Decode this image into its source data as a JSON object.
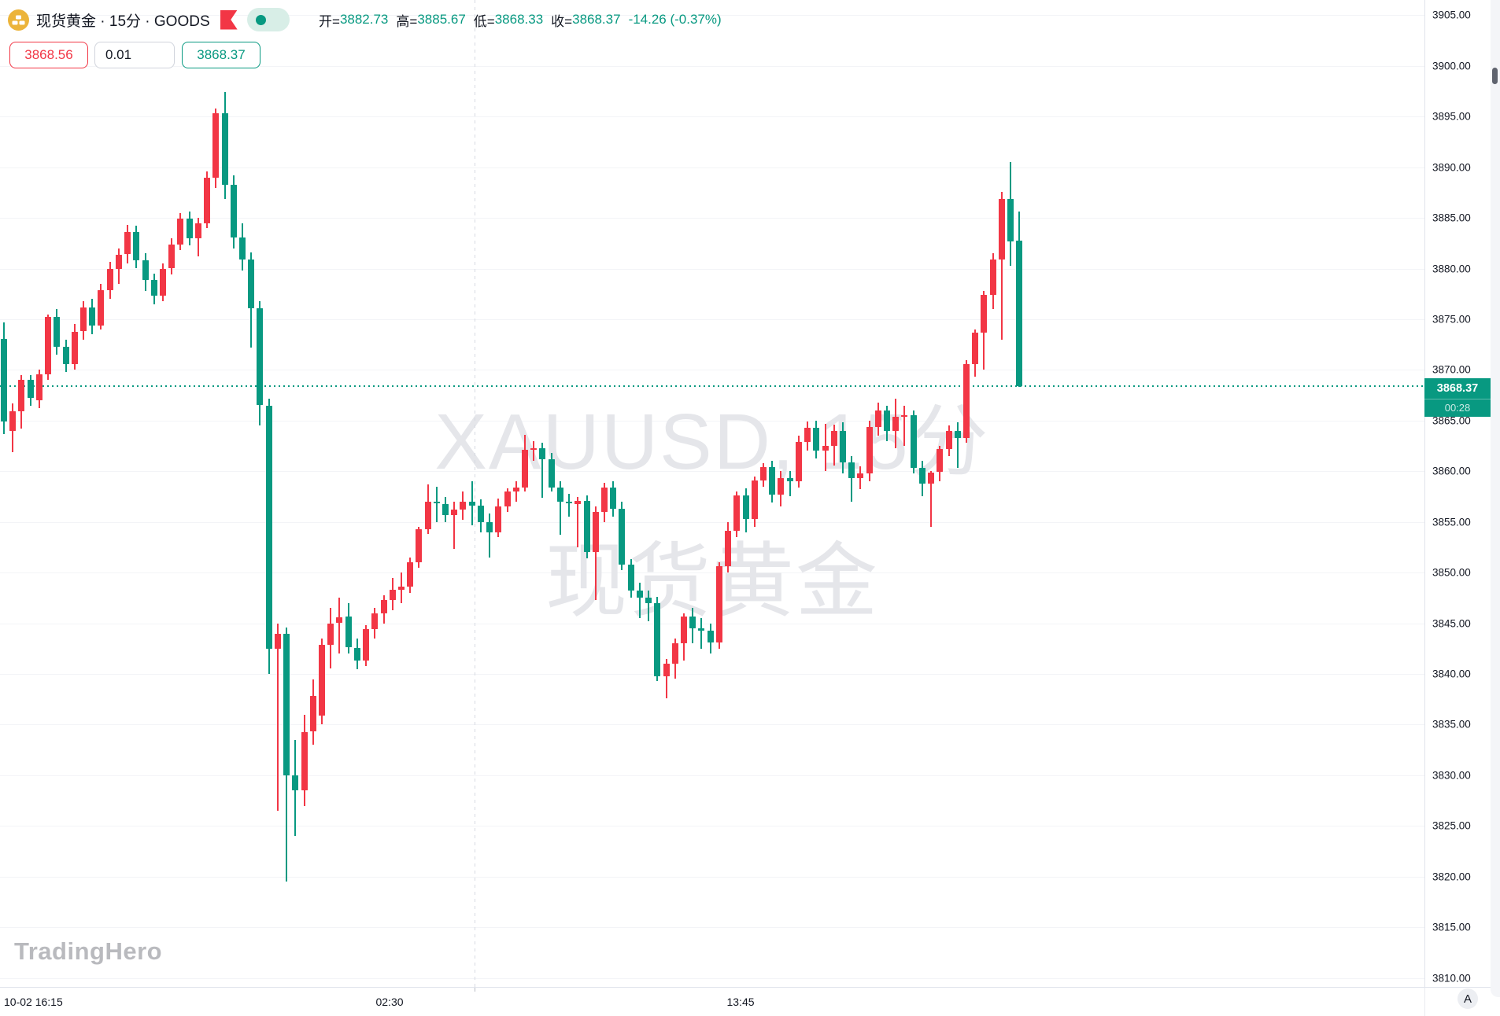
{
  "header": {
    "title": "现货黄金 · 15分 · GOODS",
    "logo_icon": "gold-bars-logo",
    "flag_icon": "red-flag-marker",
    "status_icon": "market-open-dot",
    "ohlc": {
      "open_label": "开",
      "open": "3882.73",
      "high_label": "高",
      "high": "3885.67",
      "low_label": "低",
      "low": "3868.33",
      "close_label": "收",
      "close": "3868.37",
      "change": "-14.26 (-0.37%)"
    }
  },
  "quote_panel": {
    "sell_price": "3868.56",
    "amount": "0.01",
    "buy_price": "3868.37"
  },
  "watermark": {
    "line1": "XAUUSD, 15分",
    "line2": "现货黄金"
  },
  "brand_watermark": "TradingHero",
  "price_axis": {
    "ticks": [
      "3905.00",
      "3900.00",
      "3895.00",
      "3890.00",
      "3885.00",
      "3880.00",
      "3875.00",
      "3870.00",
      "3865.00",
      "3860.00",
      "3855.00",
      "3850.00",
      "3845.00",
      "3840.00",
      "3835.00",
      "3830.00",
      "3825.00",
      "3820.00",
      "3815.00",
      "3810.00"
    ]
  },
  "time_axis": {
    "labels": [
      {
        "text": "10-02 16:15"
      },
      {
        "text": "02:30"
      },
      {
        "text": "13:45"
      }
    ]
  },
  "price_label": {
    "value": "3868.37",
    "countdown": "00:28"
  },
  "auto_scale_button": "A",
  "colors": {
    "up": "#f23645",
    "down": "#089981",
    "accent": "#089981",
    "last_price_bg": "#089981",
    "axis_text": "#131722",
    "watermark": "#e5e6ea",
    "brand_text": "#b9babe",
    "logo_gold": "#ecb43a"
  },
  "chart_data": {
    "type": "candlestick",
    "symbol": "XAUUSD (现货黄金)",
    "interval": "15分",
    "convention": "red=up, green=down",
    "ylim": [
      3810,
      3905
    ],
    "y_tick_step": 5,
    "x_labels": [
      "10-02 16:15",
      "02:30",
      "13:45"
    ],
    "last_price": 3868.37,
    "current_bar": {
      "open": 3882.73,
      "high": 3885.67,
      "low": 3868.33,
      "close": 3868.37,
      "change": -14.26,
      "change_pct": -0.37
    },
    "bars": [
      [
        3873.1,
        3874.7,
        3863.7,
        3864.9
      ],
      [
        3864.0,
        3866.7,
        3861.9,
        3865.9
      ],
      [
        3865.9,
        3869.5,
        3864.2,
        3869.0
      ],
      [
        3869.0,
        3869.5,
        3866.5,
        3867.2
      ],
      [
        3867.0,
        3870.0,
        3866.2,
        3869.6
      ],
      [
        3869.6,
        3875.5,
        3869.0,
        3875.2
      ],
      [
        3875.2,
        3876.0,
        3871.5,
        3872.3
      ],
      [
        3872.3,
        3873.0,
        3869.8,
        3870.6
      ],
      [
        3870.6,
        3874.5,
        3870.0,
        3873.8
      ],
      [
        3873.8,
        3876.8,
        3873.0,
        3876.2
      ],
      [
        3876.2,
        3877.0,
        3873.5,
        3874.4
      ],
      [
        3874.4,
        3878.5,
        3874.0,
        3877.9
      ],
      [
        3877.9,
        3880.7,
        3877.0,
        3880.0
      ],
      [
        3880.0,
        3882.0,
        3878.5,
        3881.4
      ],
      [
        3881.4,
        3884.3,
        3880.5,
        3883.6
      ],
      [
        3883.6,
        3884.2,
        3880.0,
        3880.8
      ],
      [
        3880.8,
        3881.5,
        3877.8,
        3878.9
      ],
      [
        3878.9,
        3879.5,
        3876.5,
        3877.3
      ],
      [
        3877.3,
        3880.5,
        3876.8,
        3880.0
      ],
      [
        3880.0,
        3883.0,
        3879.4,
        3882.4
      ],
      [
        3882.4,
        3885.5,
        3881.8,
        3884.9
      ],
      [
        3884.9,
        3885.6,
        3882.3,
        3883.0
      ],
      [
        3883.0,
        3885.0,
        3881.2,
        3884.5
      ],
      [
        3884.5,
        3889.6,
        3884.0,
        3889.0
      ],
      [
        3889.0,
        3895.8,
        3888.0,
        3895.3
      ],
      [
        3895.3,
        3897.4,
        3886.9,
        3888.3
      ],
      [
        3888.3,
        3889.2,
        3882.0,
        3883.1
      ],
      [
        3883.1,
        3884.5,
        3879.8,
        3880.9
      ],
      [
        3880.9,
        3881.6,
        3872.2,
        3876.1
      ],
      [
        3876.1,
        3876.8,
        3864.5,
        3866.5
      ],
      [
        3866.5,
        3867.2,
        3840.0,
        3842.5
      ],
      [
        3842.5,
        3845.0,
        3826.5,
        3844.0
      ],
      [
        3844.0,
        3844.6,
        3819.5,
        3830.0
      ],
      [
        3830.0,
        3833.5,
        3824.0,
        3828.5
      ],
      [
        3828.5,
        3836.0,
        3827.0,
        3834.3
      ],
      [
        3834.3,
        3839.5,
        3833.0,
        3837.8
      ],
      [
        3835.9,
        3843.5,
        3835.0,
        3842.9
      ],
      [
        3842.9,
        3846.5,
        3840.5,
        3845.0
      ],
      [
        3845.0,
        3847.5,
        3842.0,
        3845.6
      ],
      [
        3845.7,
        3847.0,
        3842.0,
        3842.6
      ],
      [
        3842.6,
        3843.5,
        3840.5,
        3841.3
      ],
      [
        3841.3,
        3844.8,
        3840.8,
        3844.4
      ],
      [
        3844.4,
        3846.5,
        3843.5,
        3846.0
      ],
      [
        3846.0,
        3847.8,
        3845.0,
        3847.3
      ],
      [
        3847.3,
        3849.5,
        3846.3,
        3848.3
      ],
      [
        3848.3,
        3850.0,
        3847.0,
        3848.6
      ],
      [
        3848.6,
        3851.5,
        3848.0,
        3851.0
      ],
      [
        3851.0,
        3854.5,
        3850.5,
        3854.3
      ],
      [
        3854.3,
        3858.7,
        3853.8,
        3857.0
      ],
      [
        3857.0,
        3858.5,
        3855.0,
        3856.8
      ],
      [
        3856.8,
        3857.5,
        3855.0,
        3855.7
      ],
      [
        3855.7,
        3857.0,
        3852.3,
        3856.2
      ],
      [
        3856.2,
        3858.0,
        3855.2,
        3857.0
      ],
      [
        3857.0,
        3859.0,
        3854.7,
        3856.6
      ],
      [
        3856.6,
        3857.2,
        3854.0,
        3855.0
      ],
      [
        3855.0,
        3855.8,
        3851.5,
        3854.0
      ],
      [
        3854.0,
        3857.3,
        3853.5,
        3856.5
      ],
      [
        3856.5,
        3858.3,
        3856.0,
        3858.0
      ],
      [
        3858.0,
        3859.0,
        3857.0,
        3858.4
      ],
      [
        3858.4,
        3863.6,
        3858.0,
        3862.1
      ],
      [
        3862.1,
        3863.0,
        3861.0,
        3862.3
      ],
      [
        3862.3,
        3862.8,
        3857.4,
        3861.2
      ],
      [
        3861.2,
        3861.8,
        3858.0,
        3858.4
      ],
      [
        3858.4,
        3859.0,
        3853.7,
        3857.0
      ],
      [
        3857.0,
        3857.8,
        3855.5,
        3856.8
      ],
      [
        3856.8,
        3857.5,
        3852.5,
        3857.1
      ],
      [
        3857.1,
        3857.6,
        3851.4,
        3852.0
      ],
      [
        3852.0,
        3856.5,
        3847.3,
        3856.0
      ],
      [
        3856.0,
        3858.9,
        3855.0,
        3858.4
      ],
      [
        3858.4,
        3859.0,
        3855.5,
        3856.3
      ],
      [
        3856.3,
        3857.0,
        3850.2,
        3850.8
      ],
      [
        3850.8,
        3851.3,
        3847.5,
        3848.2
      ],
      [
        3848.2,
        3849.0,
        3845.5,
        3847.5
      ],
      [
        3847.5,
        3848.2,
        3845.2,
        3847.0
      ],
      [
        3847.0,
        3847.6,
        3839.3,
        3839.8
      ],
      [
        3839.8,
        3841.5,
        3837.6,
        3841.0
      ],
      [
        3841.0,
        3843.5,
        3839.5,
        3843.0
      ],
      [
        3843.0,
        3846.0,
        3841.3,
        3845.7
      ],
      [
        3845.7,
        3846.5,
        3843.0,
        3844.5
      ],
      [
        3844.5,
        3845.5,
        3842.5,
        3844.3
      ],
      [
        3844.3,
        3845.0,
        3842.0,
        3843.1
      ],
      [
        3843.1,
        3851.0,
        3842.5,
        3850.6
      ],
      [
        3850.6,
        3855.0,
        3850.0,
        3854.1
      ],
      [
        3854.1,
        3858.0,
        3853.5,
        3857.6
      ],
      [
        3857.6,
        3858.3,
        3854.0,
        3855.3
      ],
      [
        3855.3,
        3859.5,
        3854.5,
        3859.1
      ],
      [
        3859.1,
        3860.8,
        3858.5,
        3860.4
      ],
      [
        3860.4,
        3861.0,
        3856.9,
        3857.7
      ],
      [
        3857.7,
        3860.0,
        3856.5,
        3859.3
      ],
      [
        3859.3,
        3860.0,
        3857.5,
        3859.0
      ],
      [
        3859.0,
        3863.5,
        3858.4,
        3862.9
      ],
      [
        3862.9,
        3864.9,
        3862.0,
        3864.3
      ],
      [
        3864.3,
        3865.0,
        3861.3,
        3862.0
      ],
      [
        3862.0,
        3864.7,
        3860.0,
        3862.5
      ],
      [
        3862.5,
        3864.6,
        3860.6,
        3864.0
      ],
      [
        3864.0,
        3864.8,
        3859.8,
        3860.9
      ],
      [
        3860.9,
        3861.5,
        3857.0,
        3859.3
      ],
      [
        3859.3,
        3860.5,
        3858.2,
        3859.8
      ],
      [
        3859.8,
        3865.0,
        3859.0,
        3864.4
      ],
      [
        3864.4,
        3866.8,
        3863.5,
        3866.0
      ],
      [
        3866.0,
        3866.5,
        3863.0,
        3864.0
      ],
      [
        3864.0,
        3867.2,
        3862.3,
        3865.4
      ],
      [
        3865.4,
        3866.5,
        3862.5,
        3865.5
      ],
      [
        3865.5,
        3866.0,
        3859.8,
        3860.3
      ],
      [
        3860.3,
        3861.0,
        3857.5,
        3858.8
      ],
      [
        3858.8,
        3860.0,
        3854.5,
        3859.9
      ],
      [
        3859.9,
        3862.5,
        3859.0,
        3862.2
      ],
      [
        3862.2,
        3864.5,
        3861.5,
        3864.0
      ],
      [
        3864.0,
        3864.8,
        3860.3,
        3863.3
      ],
      [
        3863.3,
        3871.0,
        3862.8,
        3870.6
      ],
      [
        3870.6,
        3874.0,
        3869.3,
        3873.7
      ],
      [
        3873.7,
        3877.8,
        3870.0,
        3877.4
      ],
      [
        3877.4,
        3881.5,
        3876.0,
        3880.9
      ],
      [
        3880.9,
        3887.6,
        3873.0,
        3886.9
      ],
      [
        3886.9,
        3890.5,
        3880.3,
        3882.7
      ],
      [
        3882.73,
        3885.67,
        3868.33,
        3868.37
      ]
    ]
  }
}
